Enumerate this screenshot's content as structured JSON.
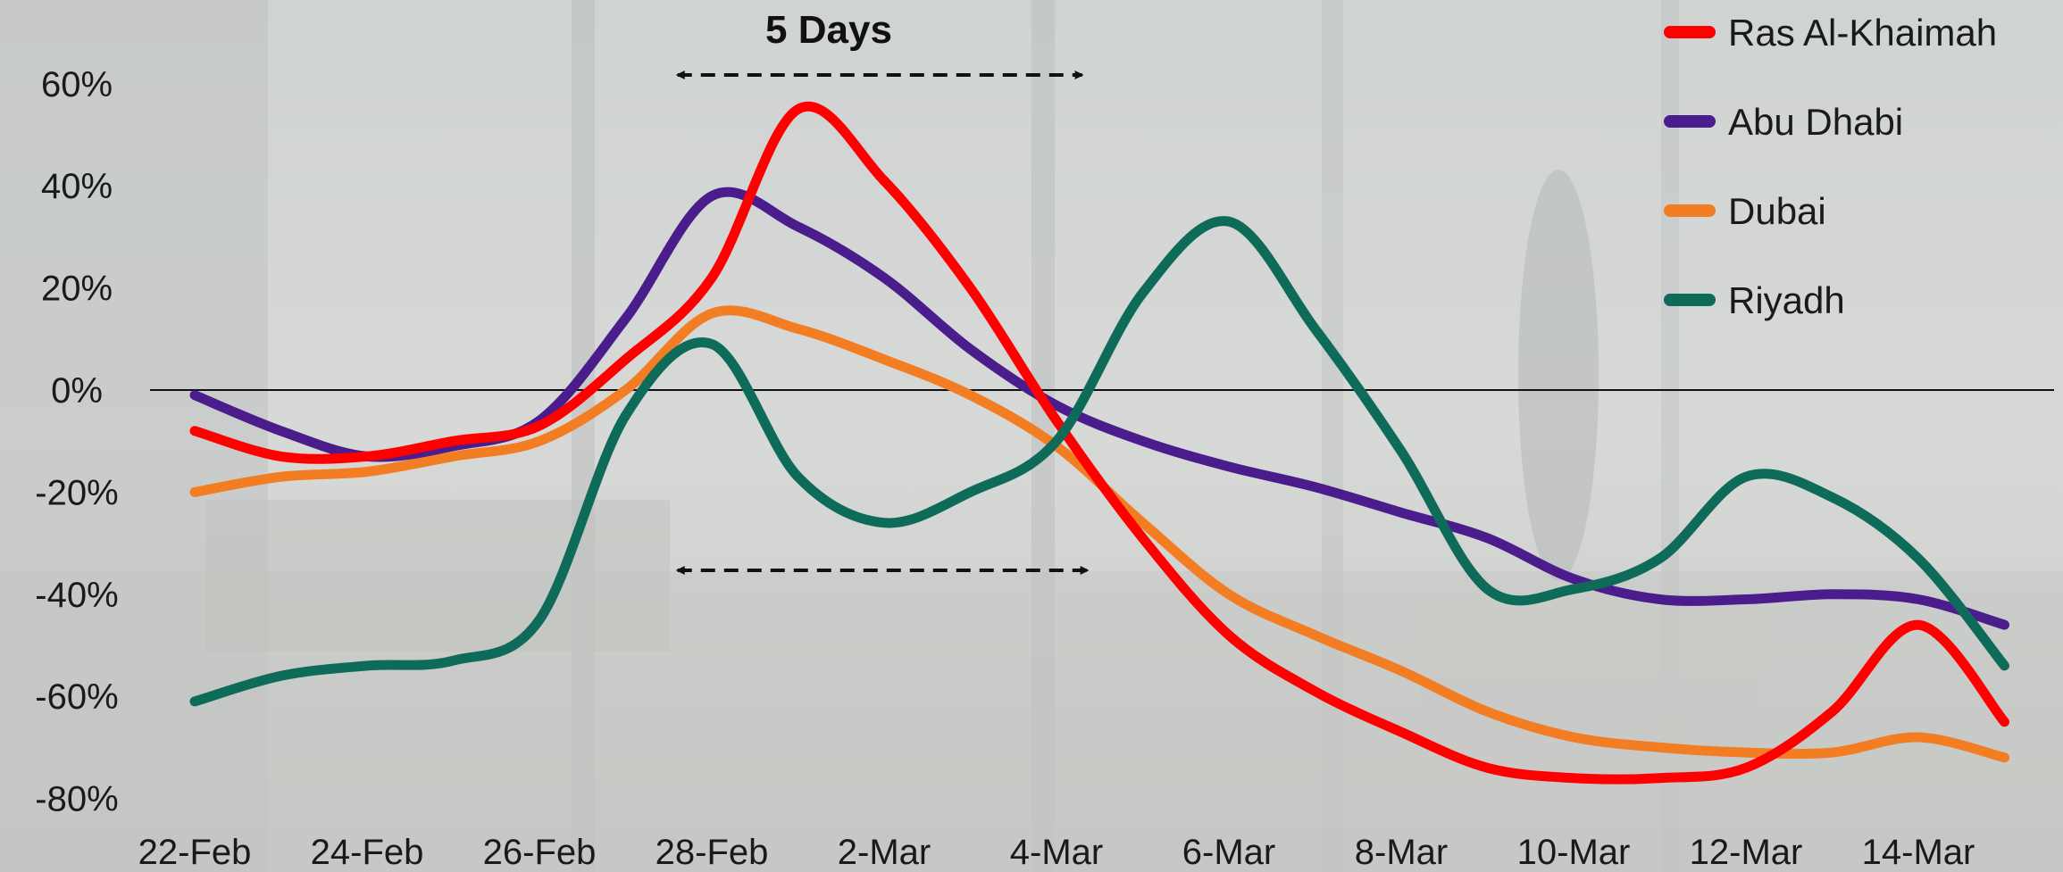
{
  "chart_data": {
    "type": "line",
    "x": [
      "22-Feb",
      "23-Feb",
      "24-Feb",
      "25-Feb",
      "26-Feb",
      "27-Feb",
      "28-Feb",
      "1-Mar",
      "2-Mar",
      "3-Mar",
      "4-Mar",
      "5-Mar",
      "6-Mar",
      "7-Mar",
      "8-Mar",
      "9-Mar",
      "10-Mar",
      "11-Mar",
      "12-Mar",
      "13-Mar",
      "14-Mar",
      "15-Mar"
    ],
    "x_tick_labels": [
      "22-Feb",
      "24-Feb",
      "26-Feb",
      "28-Feb",
      "2-Mar",
      "4-Mar",
      "6-Mar",
      "8-Mar",
      "10-Mar",
      "12-Mar",
      "14-Mar"
    ],
    "y_tick_labels": [
      "60%",
      "40%",
      "20%",
      "0%",
      "-20%",
      "-40%",
      "-60%",
      "-80%"
    ],
    "ylim": [
      -80,
      60
    ],
    "series": [
      {
        "name": "Ras Al-Khaimah",
        "color": "#ff0000",
        "values": [
          -8,
          -13,
          -13,
          -10,
          -7,
          6,
          22,
          55,
          41,
          20,
          -6,
          -29,
          -48,
          -59,
          -67,
          -74,
          -76,
          -76,
          -74,
          -63,
          -46,
          -65
        ]
      },
      {
        "name": "Abu Dhabi",
        "color": "#4b1c8c",
        "values": [
          -1,
          -8,
          -13,
          -11,
          -6,
          14,
          38,
          32,
          22,
          8,
          -3,
          -10,
          -15,
          -19,
          -24,
          -29,
          -37,
          -41,
          -41,
          -40,
          -41,
          -46
        ]
      },
      {
        "name": "Dubai",
        "color": "#f27d23",
        "values": [
          -20,
          -17,
          -16,
          -13,
          -10,
          0,
          15,
          12,
          6,
          -1,
          -11,
          -26,
          -40,
          -48,
          -55,
          -63,
          -68,
          -70,
          -71,
          -71,
          -68,
          -72
        ]
      },
      {
        "name": "Riyadh",
        "color": "#0e6b5a",
        "values": [
          -61,
          -56,
          -54,
          -53,
          -45,
          -5,
          9,
          -17,
          -26,
          -20,
          -10,
          19,
          33,
          12,
          -12,
          -39,
          -39,
          -33,
          -17,
          -21,
          -33,
          -54
        ]
      }
    ],
    "annotations": {
      "window_label": "5 Days"
    },
    "grid": false,
    "zero_line": true,
    "legend_position": "top-right"
  }
}
